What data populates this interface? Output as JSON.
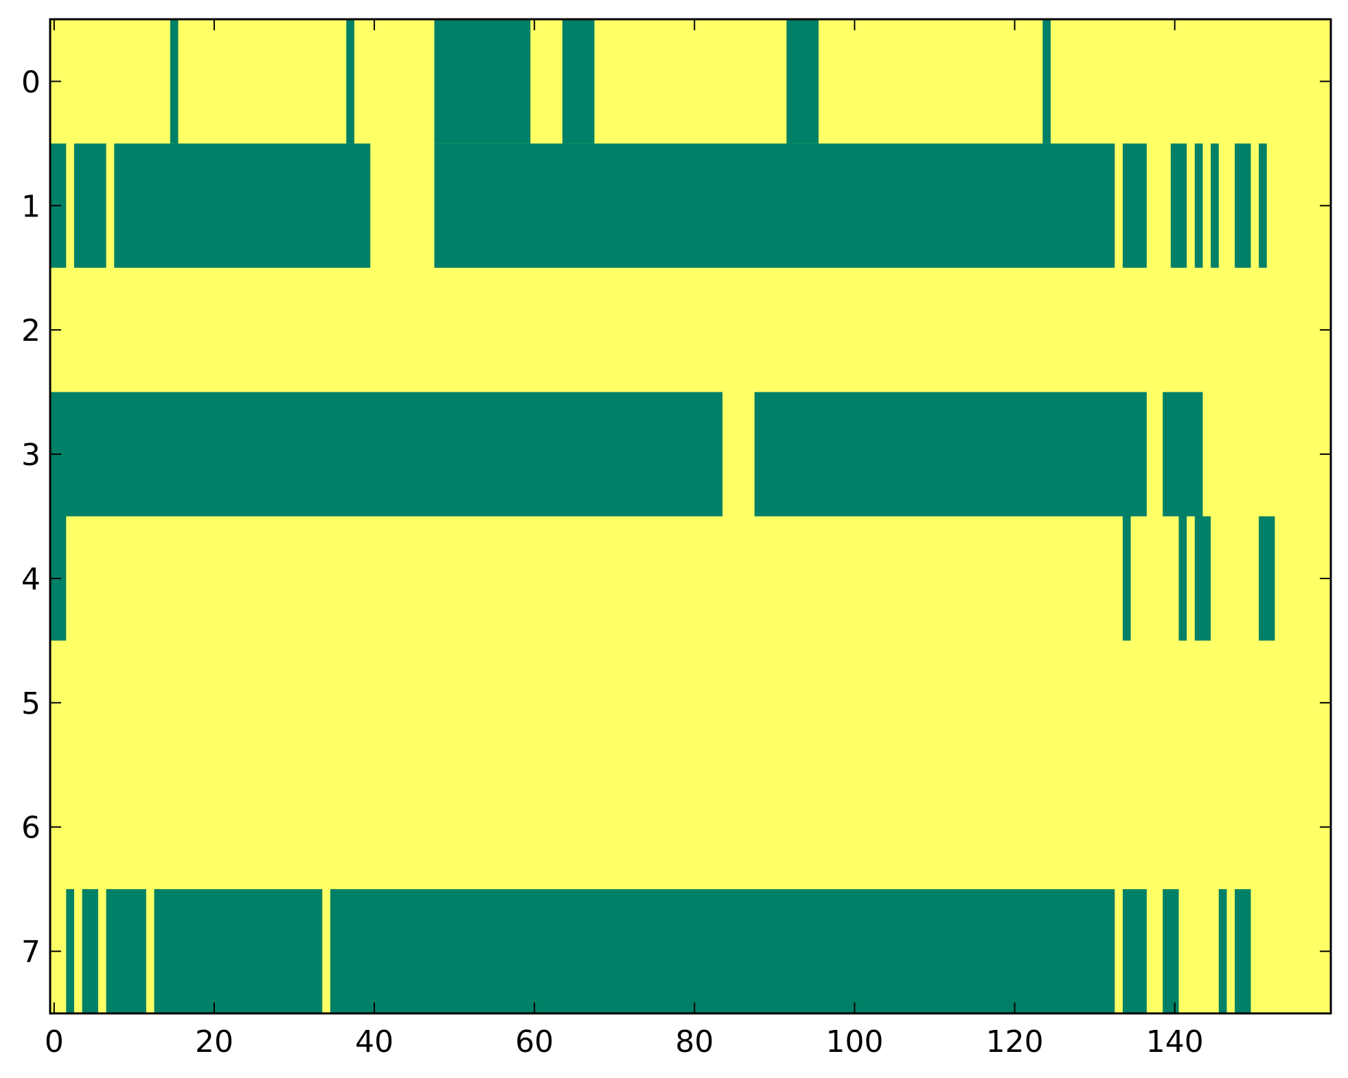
{
  "chart_data": {
    "type": "heatmap",
    "title": "",
    "xlabel": "",
    "ylabel": "",
    "xlim": [
      -0.5,
      159.5
    ],
    "ylim": [
      7.5,
      -0.5
    ],
    "x_ticks": [
      0,
      20,
      40,
      60,
      80,
      100,
      120,
      140
    ],
    "x_tick_labels": [
      "0",
      "20",
      "40",
      "60",
      "80",
      "100",
      "120",
      "140"
    ],
    "y_ticks": [
      0,
      1,
      2,
      3,
      4,
      5,
      6,
      7
    ],
    "y_tick_labels": [
      "0",
      "1",
      "2",
      "3",
      "4",
      "5",
      "6",
      "7"
    ],
    "grid": false,
    "legend": "none",
    "colors": {
      "background": "#ffff66",
      "filled": "#008066"
    },
    "columns": 160,
    "rows": [
      {
        "row": 0,
        "filled_ranges": [
          [
            15,
            15
          ],
          [
            37,
            37
          ],
          [
            48,
            59
          ],
          [
            64,
            67
          ],
          [
            92,
            95
          ],
          [
            124,
            124
          ]
        ]
      },
      {
        "row": 1,
        "filled_ranges": [
          [
            0,
            1
          ],
          [
            3,
            6
          ],
          [
            8,
            39
          ],
          [
            48,
            132
          ],
          [
            134,
            136
          ],
          [
            140,
            141
          ],
          [
            143,
            143
          ],
          [
            145,
            145
          ],
          [
            148,
            149
          ],
          [
            151,
            151
          ]
        ]
      },
      {
        "row": 2,
        "filled_ranges": []
      },
      {
        "row": 3,
        "filled_ranges": [
          [
            0,
            83
          ],
          [
            88,
            136
          ],
          [
            139,
            143
          ]
        ]
      },
      {
        "row": 4,
        "filled_ranges": [
          [
            0,
            1
          ],
          [
            134,
            134
          ],
          [
            141,
            141
          ],
          [
            143,
            144
          ],
          [
            151,
            152
          ]
        ]
      },
      {
        "row": 5,
        "filled_ranges": []
      },
      {
        "row": 6,
        "filled_ranges": []
      },
      {
        "row": 7,
        "filled_ranges": [
          [
            2,
            2
          ],
          [
            4,
            5
          ],
          [
            7,
            11
          ],
          [
            13,
            33
          ],
          [
            35,
            132
          ],
          [
            134,
            136
          ],
          [
            139,
            140
          ],
          [
            146,
            146
          ],
          [
            148,
            149
          ]
        ]
      }
    ]
  }
}
